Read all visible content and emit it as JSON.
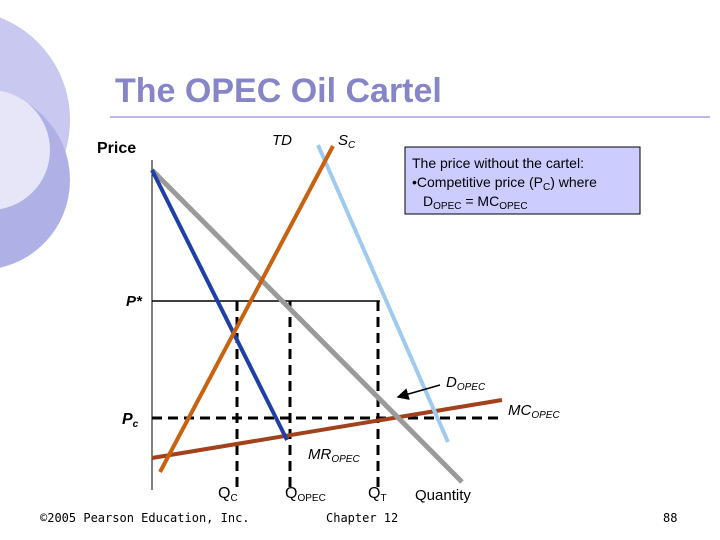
{
  "header": {
    "title": "The OPEC Oil Cartel"
  },
  "axes": {
    "y_label": "Price",
    "x_label": "Quantity"
  },
  "curves": {
    "td": "TD",
    "sc": {
      "main": "S",
      "sub": "C"
    },
    "d_opec": {
      "main": "D",
      "sub": "OPEC"
    },
    "mc_opec": {
      "main": "MC",
      "sub": "OPEC"
    },
    "mr_opec": {
      "main": "MR",
      "sub": "OPEC"
    }
  },
  "prices": {
    "p_star": "P*",
    "pc": {
      "main": "P",
      "sub": "c"
    }
  },
  "quantities": [
    {
      "main": "Q",
      "sub": "C"
    },
    {
      "main": "Q",
      "sub": "OPEC"
    },
    {
      "main": "Q",
      "sub": "T"
    }
  ],
  "box": {
    "lines": [
      [
        "The price without the cartel:"
      ],
      [
        "•Competitive price (P",
        "C",
        ") where"
      ],
      [
        "D",
        "OPEC",
        " = MC",
        "OPEC"
      ]
    ]
  },
  "footer": {
    "copyright": "©2005 Pearson Education, Inc.",
    "chapter": "Chapter 12",
    "page": "88"
  }
}
